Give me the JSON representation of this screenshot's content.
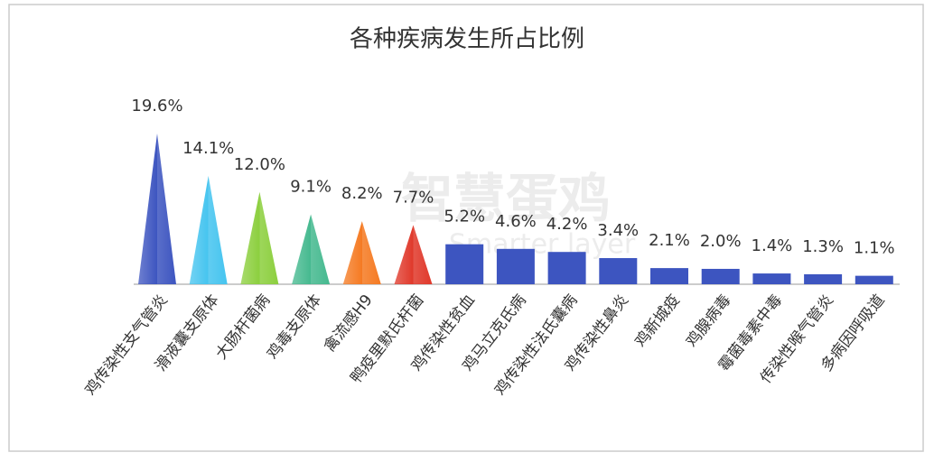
{
  "chart_data": {
    "type": "bar",
    "title": "各种疾病发生所占比例",
    "watermark": "智慧蛋鸡",
    "watermark_sub": "Smarter layer",
    "categories": [
      "鸡传染性支气管炎",
      "滑液囊支原体",
      "大肠杆菌病",
      "鸡毒支原体",
      "禽流感H9",
      "鸭疫里默氏杆菌",
      "鸡传染性贫血",
      "鸡马立克氏病",
      "鸡传染性法氏囊病",
      "鸡传染性鼻炎",
      "鸡新城疫",
      "鸡腺病毒",
      "霉菌毒素中毒",
      "传染性喉气管炎",
      "多病因呼吸道"
    ],
    "values": [
      19.6,
      14.1,
      12.0,
      9.1,
      8.2,
      7.7,
      5.2,
      4.6,
      4.2,
      3.4,
      2.1,
      2.0,
      1.4,
      1.3,
      1.1
    ],
    "value_labels": [
      "19.6%",
      "14.1%",
      "12.0%",
      "9.1%",
      "8.2%",
      "7.7%",
      "5.2%",
      "4.6%",
      "4.2%",
      "3.4%",
      "2.1%",
      "2.0%",
      "1.4%",
      "1.3%",
      "1.1%"
    ],
    "shapes": [
      "pyramid",
      "pyramid",
      "pyramid",
      "pyramid",
      "pyramid",
      "pyramid",
      "rect",
      "rect",
      "rect",
      "rect",
      "rect",
      "rect",
      "rect",
      "rect",
      "rect"
    ],
    "colors": [
      "#3d55c0",
      "#45c4ef",
      "#8ccf3e",
      "#45b98f",
      "#f57a22",
      "#e0382a",
      "#3d55c0",
      "#3d55c0",
      "#3d55c0",
      "#3d55c0",
      "#3d55c0",
      "#3d55c0",
      "#3d55c0",
      "#3d55c0",
      "#3d55c0"
    ]
  }
}
